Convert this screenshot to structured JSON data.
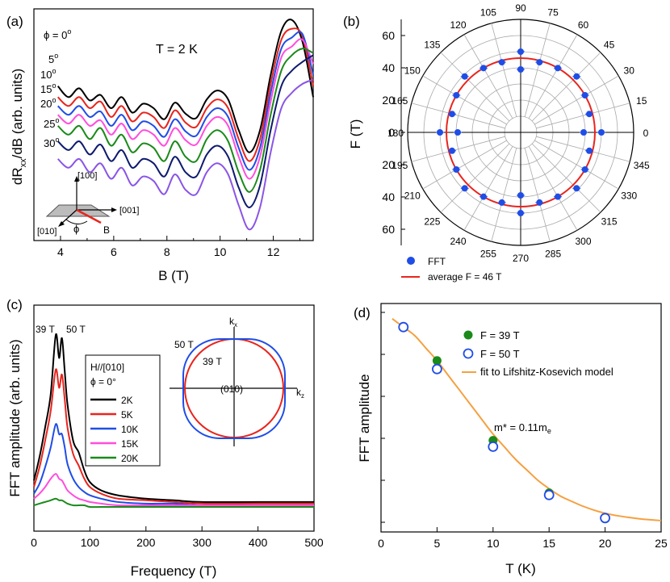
{
  "chart_data": [
    {
      "panel": "(a)",
      "type": "line",
      "title": "T = 2 K",
      "xlabel": "B (T)",
      "ylabel_main": "dR",
      "ylabel_sub": "xx",
      "ylabel_rest": "/dB (arb. units)",
      "xlim": [
        3.0,
        13.5
      ],
      "xticks": [
        "4",
        "6",
        "8",
        "10",
        "12"
      ],
      "x": [
        3.9,
        4.3,
        4.7,
        5.1,
        5.5,
        5.9,
        6.3,
        6.7,
        7.1,
        7.5,
        7.9,
        8.3,
        8.7,
        9.1,
        9.5,
        9.9,
        10.3,
        10.7,
        11.1,
        11.5,
        11.9,
        12.3,
        12.7,
        13.1,
        13.5
      ],
      "series": [
        {
          "name": "ϕ = 0o",
          "label": "0",
          "values": [
            90,
            80,
            88,
            77,
            82,
            70,
            80,
            66,
            74,
            70,
            60,
            75,
            65,
            61,
            78,
            86,
            78,
            50,
            30,
            50,
            100,
            140,
            150,
            130,
            80
          ]
        },
        {
          "name": "5o",
          "label": "5",
          "values": [
            80,
            72,
            80,
            70,
            76,
            62,
            72,
            58,
            66,
            62,
            52,
            68,
            57,
            53,
            70,
            78,
            70,
            42,
            22,
            42,
            92,
            132,
            142,
            135,
            90
          ]
        },
        {
          "name": "10o",
          "label": "10",
          "values": [
            72,
            64,
            72,
            62,
            67,
            54,
            64,
            50,
            58,
            54,
            44,
            60,
            49,
            45,
            62,
            70,
            62,
            34,
            14,
            34,
            84,
            124,
            134,
            137,
            100
          ]
        },
        {
          "name": "15o",
          "label": "15",
          "values": [
            64,
            56,
            64,
            54,
            59,
            46,
            56,
            42,
            50,
            46,
            36,
            52,
            41,
            37,
            54,
            62,
            54,
            26,
            6,
            26,
            76,
            116,
            126,
            132,
            110
          ]
        },
        {
          "name": "20o",
          "label": "20",
          "values": [
            54,
            46,
            54,
            42,
            52,
            36,
            46,
            30,
            38,
            34,
            22,
            40,
            26,
            22,
            42,
            50,
            40,
            12,
            -6,
            14,
            64,
            104,
            118,
            124,
            120
          ]
        },
        {
          "name": "25o",
          "label": "25",
          "values": [
            40,
            32,
            40,
            28,
            37,
            22,
            32,
            16,
            24,
            20,
            8,
            26,
            12,
            8,
            28,
            36,
            26,
            -2,
            -20,
            0,
            50,
            90,
            104,
            112,
            118
          ]
        },
        {
          "name": "30o",
          "label": "30",
          "values": [
            24,
            16,
            24,
            12,
            20,
            6,
            16,
            0,
            8,
            4,
            -8,
            10,
            -4,
            -8,
            12,
            20,
            10,
            -18,
            -40,
            -20,
            30,
            70,
            84,
            92,
            96
          ]
        }
      ],
      "colors": [
        "#000000",
        "#e8251d",
        "#1f4de6",
        "#ff4ddd",
        "#1a8a1a",
        "#0e1a6e",
        "#8a55e6"
      ],
      "angle_labels": [
        "ϕ = 0",
        "5",
        "10",
        "15",
        "20",
        "25",
        "30"
      ],
      "degree_sign": "o",
      "inset_axes": {
        "a100": "[100]",
        "a001": "[001]",
        "a010": "[010]",
        "phi": "ϕ",
        "field": "B"
      }
    },
    {
      "panel": "(b)",
      "type": "scatter",
      "coordinate": "polar",
      "ylabel": "F (T)",
      "rlim": [
        0,
        70
      ],
      "r_ticks_upper": [
        "60",
        "40",
        "20",
        "0"
      ],
      "r_ticks_lower": [
        "20",
        "40",
        "60"
      ],
      "angle_ticks": [
        "0",
        "15",
        "30",
        "45",
        "60",
        "75",
        "90",
        "105",
        "120",
        "135",
        "150",
        "165",
        "180",
        "195",
        "210",
        "225",
        "240",
        "255",
        "270",
        "285",
        "300",
        "315",
        "330",
        "345"
      ],
      "series": [
        {
          "name": "FFT",
          "points": [
            [
              0,
              39
            ],
            [
              0,
              50
            ],
            [
              15,
              44
            ],
            [
              30,
              46
            ],
            [
              45,
              49
            ],
            [
              60,
              46
            ],
            [
              75,
              45
            ],
            [
              90,
              39
            ],
            [
              90,
              50
            ],
            [
              105,
              45
            ],
            [
              120,
              46
            ],
            [
              135,
              49
            ],
            [
              150,
              46
            ],
            [
              165,
              44
            ],
            [
              180,
              39
            ],
            [
              180,
              50
            ],
            [
              195,
              44
            ],
            [
              210,
              46
            ],
            [
              225,
              49
            ],
            [
              240,
              46
            ],
            [
              255,
              45
            ],
            [
              270,
              39
            ],
            [
              270,
              50
            ],
            [
              285,
              45
            ],
            [
              300,
              46
            ],
            [
              315,
              49
            ],
            [
              330,
              46
            ],
            [
              345,
              44
            ]
          ]
        },
        {
          "name": "average F = 46 T",
          "radius": 46
        }
      ],
      "legend": [
        "FFT",
        "average F = 46 T"
      ],
      "colors": {
        "fft": "#1f4de6",
        "avg": "#e8251d"
      }
    },
    {
      "panel": "(c)",
      "type": "line",
      "xlabel": "Frequency (T)",
      "ylabel": "FFT amplitude (arb. units)",
      "xlim": [
        0,
        500
      ],
      "ylim": [
        0,
        120
      ],
      "xticks": [
        "0",
        "100",
        "200",
        "300",
        "400",
        "500"
      ],
      "x": [
        0,
        10,
        20,
        30,
        39,
        45,
        50,
        55,
        60,
        70,
        80,
        90,
        100,
        120,
        150,
        200,
        250,
        300,
        400,
        500
      ],
      "series": [
        {
          "name": "2K",
          "values": [
            16,
            30,
            48,
            68,
            104,
            90,
            102,
            82,
            62,
            40,
            33,
            22,
            15,
            10,
            7,
            5,
            4,
            3,
            3,
            3
          ]
        },
        {
          "name": "5K",
          "values": [
            12,
            24,
            40,
            58,
            83,
            72,
            80,
            65,
            48,
            32,
            25,
            17,
            12,
            8,
            5,
            4,
            3,
            2,
            2,
            2
          ]
        },
        {
          "name": "10K",
          "values": [
            8,
            14,
            24,
            36,
            50,
            44,
            44,
            36,
            26,
            17,
            12,
            9,
            7,
            5,
            3,
            2,
            2,
            1,
            1,
            1
          ]
        },
        {
          "name": "15K",
          "values": [
            5,
            8,
            12,
            17,
            20,
            17,
            16,
            13,
            10,
            7,
            5,
            4,
            3,
            2,
            1,
            1,
            1,
            1,
            1,
            1
          ]
        },
        {
          "name": "20K",
          "values": [
            1,
            2,
            3,
            4,
            5,
            4,
            4,
            3,
            2,
            1,
            1,
            1,
            0,
            0,
            0,
            0,
            0,
            0,
            0,
            0
          ]
        }
      ],
      "colors": [
        "#000000",
        "#e8251d",
        "#1f4de6",
        "#ff4ddd",
        "#1a8a1a"
      ],
      "legend_title": [
        "H//[010]",
        "ϕ = 0°"
      ],
      "peak_labels": [
        "39 T",
        "50 T"
      ],
      "inset": {
        "kx": "k",
        "kx_sub": "x",
        "kz": "k",
        "kz_sub": "z",
        "label_outer": "50 T",
        "label_inner": "39 T",
        "center": "(010)"
      }
    },
    {
      "panel": "(d)",
      "type": "scatter",
      "xlabel": "T (K)",
      "ylabel": "FFT amplitude",
      "xlim": [
        0,
        25
      ],
      "ylim": [
        0,
        100
      ],
      "xticks": [
        "0",
        "5",
        "10",
        "15",
        "20",
        "25"
      ],
      "series": [
        {
          "name": "F = 39 T",
          "x": [
            5,
            10,
            15
          ],
          "values": [
            77,
            39,
            14
          ]
        },
        {
          "name": "F = 50 T",
          "x": [
            2,
            5,
            10,
            15,
            20
          ],
          "values": [
            93,
            73,
            36,
            13,
            2
          ]
        },
        {
          "name": "fit to Lifshitz-Kosevich model",
          "x": [
            1,
            2,
            3,
            4,
            5,
            6,
            7,
            8,
            9,
            10,
            11,
            12,
            13,
            14,
            15,
            16,
            17,
            18,
            19,
            20,
            21,
            22,
            23,
            24,
            25
          ],
          "values": [
            97,
            93,
            89,
            83,
            77,
            70,
            63,
            56,
            49,
            42,
            36,
            30,
            25,
            20,
            16,
            12.5,
            10,
            7.7,
            5.8,
            4.3,
            3.2,
            2.4,
            1.7,
            1.2,
            0.8
          ]
        }
      ],
      "colors": {
        "f39": "#1a8a1a",
        "f50": "#1f4de6",
        "fit": "#f5a040"
      },
      "annotation": "m* = 0.11m",
      "annotation_sub": "e"
    }
  ]
}
